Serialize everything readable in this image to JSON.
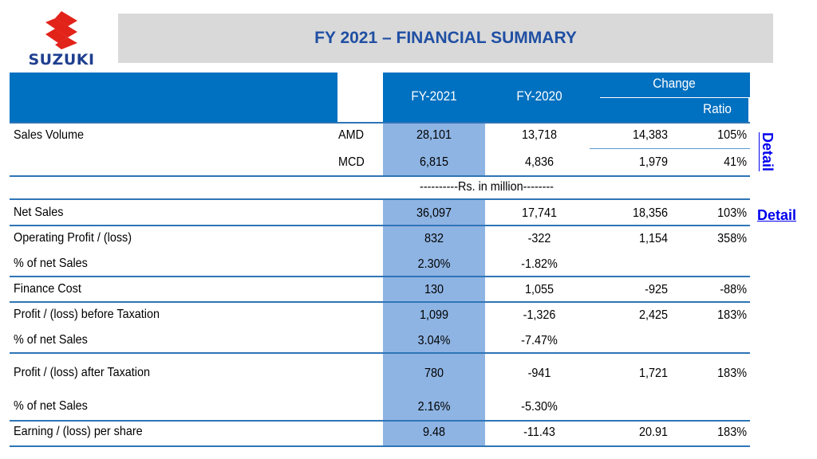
{
  "logo": {
    "text": "SUZUKI"
  },
  "title": "FY 2021 – FINANCIAL SUMMARY",
  "header": {
    "fy2021": "FY-2021",
    "fy2020": "FY-2020",
    "change": "Change",
    "ratio": "Ratio"
  },
  "units_note": "----------Rs. in  million--------",
  "links": {
    "detail_1": "Detail",
    "detail_2": "Detail"
  },
  "rows": [
    {
      "label": "Sales Volume",
      "sub": "AMD",
      "fy2021": "28,101",
      "fy2020": "13,718",
      "change": "14,383",
      "ratio": "105%"
    },
    {
      "label": "",
      "sub": "MCD",
      "fy2021": "6,815",
      "fy2020": "4,836",
      "change": "1,979",
      "ratio": "41%"
    },
    {
      "label": "Net Sales",
      "sub": "",
      "fy2021": "36,097",
      "fy2020": "17,741",
      "change": "18,356",
      "ratio": "103%"
    },
    {
      "label": "Operating Profit / (loss)",
      "sub": "",
      "fy2021": "832",
      "fy2020": "-322",
      "change": "1,154",
      "ratio": "358%"
    },
    {
      "label": "% of net Sales",
      "sub": "",
      "fy2021": "2.30%",
      "fy2020": "-1.82%",
      "change": "",
      "ratio": ""
    },
    {
      "label": "Finance Cost",
      "sub": "",
      "fy2021": "130",
      "fy2020": "1,055",
      "change": "-925",
      "ratio": "-88%"
    },
    {
      "label": "Profit / (loss) before Taxation",
      "sub": "",
      "fy2021": "1,099",
      "fy2020": "-1,326",
      "change": "2,425",
      "ratio": "183%"
    },
    {
      "label": "% of net Sales",
      "sub": "",
      "fy2021": "3.04%",
      "fy2020": "-7.47%",
      "change": "",
      "ratio": ""
    },
    {
      "label": "Profit / (loss) after Taxation",
      "sub": "",
      "fy2021": "780",
      "fy2020": "-941",
      "change": "1,721",
      "ratio": "183%"
    },
    {
      "label": "% of net Sales",
      "sub": "",
      "fy2021": "2.16%",
      "fy2020": "-5.30%",
      "change": "",
      "ratio": ""
    },
    {
      "label": "Earning / (loss) per share",
      "sub": "",
      "fy2021": "9.48",
      "fy2020": "-11.43",
      "change": "20.91",
      "ratio": "183%"
    }
  ],
  "colors": {
    "header_blue": "#0070c0",
    "fy2021_column": "#8eb4e3",
    "title_text": "#1f4fa3",
    "logo_red": "#e2231a",
    "logo_blue": "#1f3f8f"
  }
}
